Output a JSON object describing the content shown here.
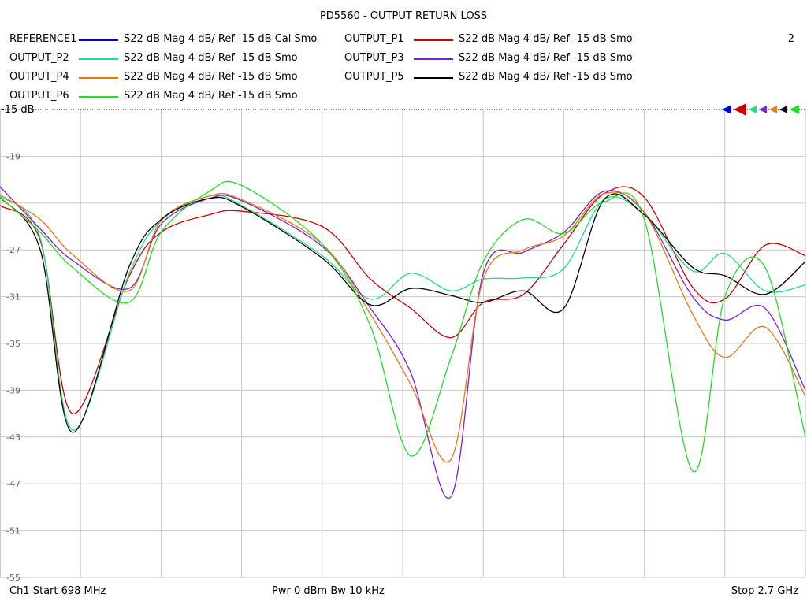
{
  "chart_data": {
    "type": "line",
    "title": "PD5560 - OUTPUT RETURN LOSS",
    "channel_number": "2",
    "ref_label": "-15 dB",
    "ylim": [
      -55,
      -15
    ],
    "y_ticks": [
      -15,
      -19,
      -23,
      -27,
      -31,
      -35,
      -39,
      -43,
      -47,
      -51,
      -55
    ],
    "y_tick_labels": [
      "-15 dB",
      "-19",
      "",
      "-27",
      "-31",
      "-35",
      "-39",
      "-43",
      "-47",
      "-51",
      "-55"
    ],
    "x_divisions": 10,
    "x_start_mhz": 698,
    "x_stop_mhz": 2700,
    "grid": true,
    "legend": [
      {
        "name": "REFERENCE1",
        "desc": "S22  dB Mag  4 dB/ Ref -15 dB  Cal Smo",
        "color": "#0000cc"
      },
      {
        "name": "OUTPUT_P1",
        "desc": "S22  dB Mag  4 dB/ Ref -15 dB  Smo",
        "color": "#cc0000"
      },
      {
        "name": "OUTPUT_P2",
        "desc": "S22  dB Mag  4 dB/ Ref -15 dB  Smo",
        "color": "#22dd88"
      },
      {
        "name": "OUTPUT_P3",
        "desc": "S22  dB Mag  4 dB/ Ref -15 dB  Smo",
        "color": "#7722dd"
      },
      {
        "name": "OUTPUT_P4",
        "desc": "S22  dB Mag  4 dB/ Ref -15 dB  Smo",
        "color": "#ee7711"
      },
      {
        "name": "OUTPUT_P5",
        "desc": "S22  dB Mag  4 dB/ Ref -15 dB  Smo",
        "color": "#000000"
      },
      {
        "name": "OUTPUT_P6",
        "desc": "S22  dB Mag  4 dB/ Ref -15 dB  Smo",
        "color": "#22dd22"
      }
    ],
    "x": [
      0,
      0.5,
      0.9,
      1.6,
      2,
      2.6,
      3,
      4,
      4.6,
      5.1,
      5.6,
      6,
      6.5,
      7,
      7.5,
      8,
      8.6,
      9,
      9.5,
      10
    ],
    "series": [
      {
        "name": "OUTPUT_P1",
        "color": "#cc0000",
        "values": [
          -23.2,
          -26.2,
          -41,
          -29.3,
          -25.5,
          -24,
          -23.7,
          -25,
          -29.5,
          -32,
          -34.5,
          -31.5,
          -30.8,
          -26.5,
          -22.2,
          -22.5,
          -30.2,
          -31.2,
          -26.6,
          -27.5
        ]
      },
      {
        "name": "OUTPUT_P2",
        "color": "#22dd88",
        "values": [
          -22.4,
          -26,
          -42.4,
          -29.1,
          -24.5,
          -22.4,
          -23.2,
          -27.5,
          -31.2,
          -29,
          -30.5,
          -29.5,
          -29.4,
          -28.6,
          -22.7,
          -24,
          -28.8,
          -27.3,
          -30.5,
          -30
        ]
      },
      {
        "name": "OUTPUT_P3",
        "color": "#7722dd",
        "values": [
          -21.6,
          -25.2,
          -27.9,
          -30.3,
          -24.8,
          -22.6,
          -22.8,
          -26.7,
          -32,
          -37.5,
          -48.1,
          -29,
          -27.2,
          -25.5,
          -22,
          -23.8,
          -31,
          -33,
          -32,
          -39
        ]
      },
      {
        "name": "OUTPUT_P4",
        "color": "#ee7711",
        "values": [
          -22.3,
          -24.4,
          -27.4,
          -30.5,
          -24.5,
          -22.4,
          -22.7,
          -26.5,
          -32.5,
          -38.5,
          -44.9,
          -29.5,
          -27,
          -25.8,
          -22.2,
          -23.8,
          -32.5,
          -36.2,
          -33.6,
          -39.5
        ]
      },
      {
        "name": "OUTPUT_P5",
        "color": "#000000",
        "values": [
          -22.5,
          -27,
          -42.6,
          -28.5,
          -24.4,
          -22.6,
          -23.3,
          -27.7,
          -31.7,
          -30.3,
          -30.9,
          -31.5,
          -30.5,
          -32,
          -22.7,
          -24,
          -28.5,
          -29.2,
          -30.8,
          -28
        ]
      },
      {
        "name": "OUTPUT_P6",
        "color": "#22dd22",
        "values": [
          -22.5,
          -25.5,
          -28.5,
          -31.5,
          -25.5,
          -22,
          -21.5,
          -26.5,
          -33.5,
          -44.6,
          -36.2,
          -28,
          -24.4,
          -25.6,
          -22.9,
          -24.4,
          -45.9,
          -31,
          -28.5,
          -43
        ]
      }
    ],
    "footer_left": "Ch1  Start  698 MHz",
    "footer_mid": "Pwr  0 dBm  Bw  10 kHz",
    "footer_right": "Stop  2.7 GHz"
  }
}
